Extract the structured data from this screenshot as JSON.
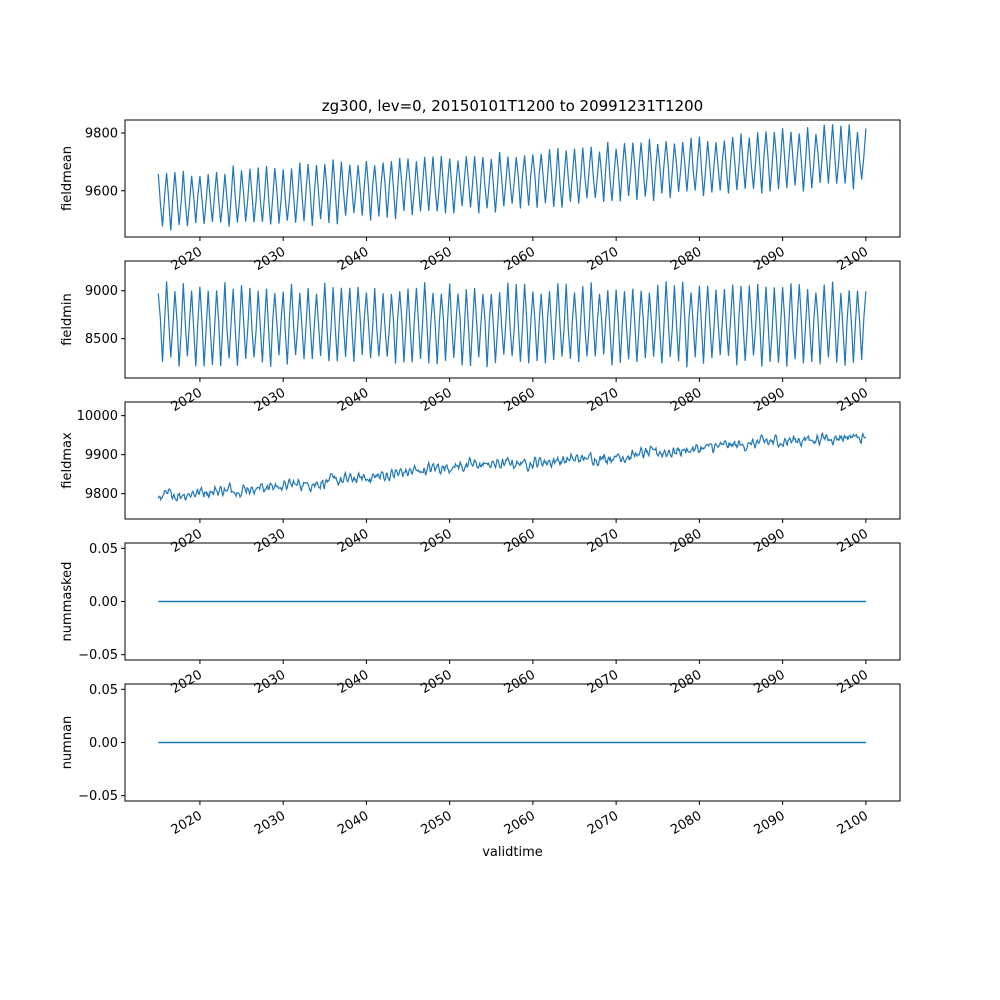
{
  "chart_data": {
    "title": "zg300, lev=0, 20150101T1200 to 20991231T1200",
    "xlabel": "validtime",
    "type": "line",
    "x_range": [
      2015.0,
      2100.0
    ],
    "x_ticks": [
      "2020",
      "2030",
      "2040",
      "2050",
      "2060",
      "2070",
      "2080",
      "2090",
      "2100"
    ],
    "line_color": "#1f77b4",
    "grid": false,
    "panels": [
      {
        "ylabel": "fieldmean",
        "ylim": [
          9440,
          9845
        ],
        "yticks": [
          9600,
          9800
        ],
        "ytick_labels": [
          "9600",
          "9800"
        ],
        "series": {
          "x": [
            2015.0,
            2025.0,
            2035.0,
            2045.0,
            2055.0,
            2065.0,
            2075.0,
            2085.0,
            2095.0,
            2100.0
          ],
          "low": [
            9455,
            9465,
            9480,
            9505,
            9520,
            9540,
            9565,
            9585,
            9600,
            9605
          ],
          "high": [
            9670,
            9690,
            9710,
            9725,
            9740,
            9760,
            9785,
            9805,
            9830,
            9835
          ]
        }
      },
      {
        "ylabel": "fieldmin",
        "ylim": [
          8090,
          9310
        ],
        "yticks": [
          8500,
          9000
        ],
        "ytick_labels": [
          "8500",
          "9000"
        ],
        "series": {
          "x": [
            2015.0,
            2100.0
          ],
          "low": [
            8200,
            8200
          ],
          "high": [
            9100,
            9100
          ]
        }
      },
      {
        "ylabel": "fieldmax",
        "ylim": [
          9735,
          10035
        ],
        "yticks": [
          9800,
          9900,
          10000
        ],
        "ytick_labels": [
          "9800",
          "9900",
          "10000"
        ],
        "series": {
          "x": [
            2015.0,
            2020.0,
            2030.0,
            2040.0,
            2050.0,
            2060.0,
            2070.0,
            2080.0,
            2090.0,
            2100.0
          ],
          "mean": [
            9790,
            9805,
            9820,
            9840,
            9870,
            9880,
            9895,
            9915,
            9935,
            9950
          ]
        }
      },
      {
        "ylabel": "nummasked",
        "ylim": [
          -0.055,
          0.055
        ],
        "yticks": [
          -0.05,
          0.0,
          0.05
        ],
        "ytick_labels": [
          "−0.05",
          "0.00",
          "0.05"
        ],
        "series": {
          "x": [
            2015.0,
            2100.0
          ],
          "y": [
            0.0,
            0.0
          ]
        }
      },
      {
        "ylabel": "numnan",
        "ylim": [
          -0.055,
          0.055
        ],
        "yticks": [
          -0.05,
          0.0,
          0.05
        ],
        "ytick_labels": [
          "−0.05",
          "0.00",
          "0.05"
        ],
        "series": {
          "x": [
            2015.0,
            2100.0
          ],
          "y": [
            0.0,
            0.0
          ]
        }
      }
    ]
  }
}
